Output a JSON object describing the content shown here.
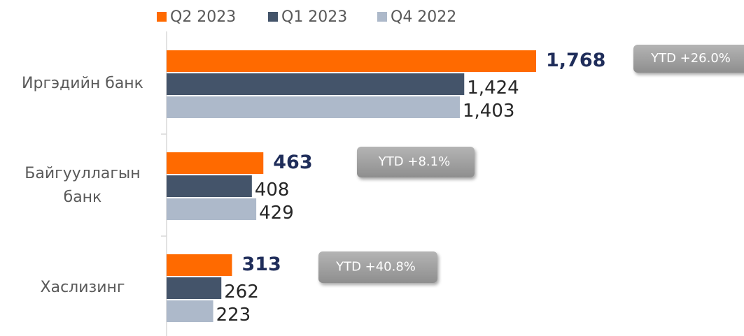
{
  "chart_data": {
    "type": "bar",
    "orientation": "horizontal",
    "categories": [
      "Иргэдийн банк",
      "Байгууллагын банк",
      "Хаслизинг"
    ],
    "series": [
      {
        "name": "Q2 2023",
        "color": "#ff6a00",
        "values": [
          1768,
          463,
          313
        ],
        "value_labels": [
          "1,768",
          "463",
          "313"
        ]
      },
      {
        "name": "Q1 2023",
        "color": "#44546a",
        "values": [
          1424,
          408,
          262
        ],
        "value_labels": [
          "1,424",
          "408",
          "262"
        ]
      },
      {
        "name": "Q4 2022",
        "color": "#adb9ca",
        "values": [
          1403,
          429,
          223
        ],
        "value_labels": [
          "1,403",
          "429",
          "223"
        ]
      }
    ],
    "annotations": [
      "YTD +26.0%",
      "YTD +8.1%",
      "YTD +40.8%"
    ],
    "legend": "top"
  }
}
